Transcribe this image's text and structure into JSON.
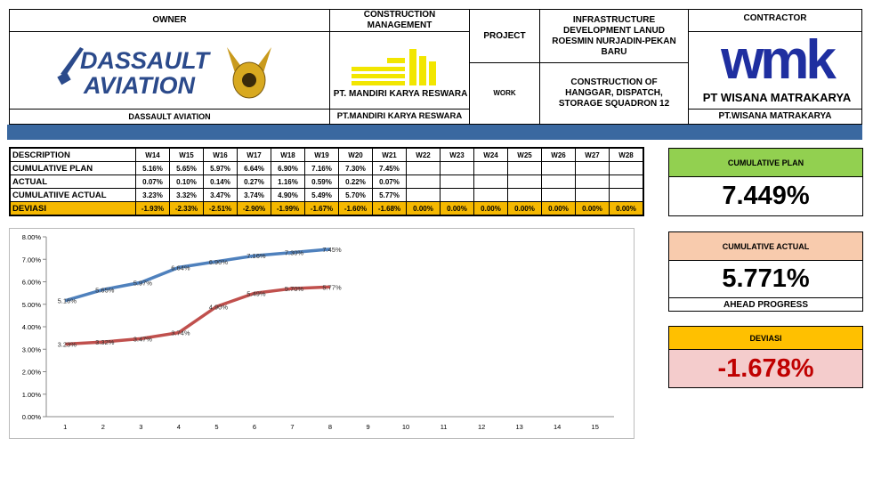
{
  "header": {
    "owner_label": "OWNER",
    "cm_label": "CONSTRUCTION MANAGEMENT",
    "project_label": "PROJECT",
    "work_label": "WORK",
    "project": "INFRASTRUCTURE DEVELOPMENT LANUD ROESMIN NURJADIN-PEKAN BARU",
    "work": "CONSTRUCTION OF HANGGAR, DISPATCH, STORAGE SQUADRON 12",
    "contractor_label": "CONTRACTOR",
    "owner": "DASSAULT AVIATION",
    "cm": "PT.MANDIRI KARYA RESWARA",
    "contractor": "PT.WISANA MATRAKARYA",
    "logos": {
      "owner_line1": "DASSAULT",
      "owner_line2": "AVIATION",
      "cm": "PT. MANDIRI KARYA RESWARA",
      "contractor_mark": "wmk",
      "contractor": "PT WISANA MATRAKARYA"
    }
  },
  "table": {
    "columns": [
      "DESCRIPTION",
      "W14",
      "W15",
      "W16",
      "W17",
      "W18",
      "W19",
      "W20",
      "W21",
      "W22",
      "W23",
      "W24",
      "W25",
      "W26",
      "W27",
      "W28"
    ],
    "rows": [
      [
        "CUMULATIVE PLAN",
        "5.16%",
        "5.65%",
        "5.97%",
        "6.64%",
        "6.90%",
        "7.16%",
        "7.30%",
        "7.45%"
      ],
      [
        "ACTUAL",
        "0.07%",
        "0.10%",
        "0.14%",
        "0.27%",
        "1.16%",
        "0.59%",
        "0.22%",
        "0.07%"
      ],
      [
        "CUMULATIIVE ACTUAL",
        "3.23%",
        "3.32%",
        "3.47%",
        "3.74%",
        "4.90%",
        "5.49%",
        "5.70%",
        "5.77%"
      ],
      [
        "DEVIASI",
        "-1.93%",
        "-2.33%",
        "-2.51%",
        "-2.90%",
        "-1.99%",
        "-1.67%",
        "-1.60%",
        "-1.68%",
        "0.00%",
        "0.00%",
        "0.00%",
        "0.00%",
        "0.00%",
        "0.00%",
        "0.00%"
      ]
    ]
  },
  "chart_data": {
    "type": "line",
    "categories": [
      "1",
      "2",
      "3",
      "4",
      "5",
      "6",
      "7",
      "8",
      "9",
      "10",
      "11",
      "12",
      "13",
      "14",
      "15"
    ],
    "ylim": [
      0,
      8
    ],
    "yticks": [
      {
        "value": 0,
        "label": "0.00%"
      },
      {
        "value": 1,
        "label": "1.00%"
      },
      {
        "value": 2,
        "label": "2.00%"
      },
      {
        "value": 3,
        "label": "3.00%"
      },
      {
        "value": 4,
        "label": "4.00%"
      },
      {
        "value": 5,
        "label": "5.00%"
      },
      {
        "value": 6,
        "label": "6.00%"
      },
      {
        "value": 7,
        "label": "7.00%"
      },
      {
        "value": 8,
        "label": "8.00%"
      }
    ],
    "series": [
      {
        "color": "#4f81bd",
        "values": [
          5.16,
          5.65,
          5.97,
          6.64,
          6.9,
          7.16,
          7.3,
          7.45,
          null,
          null,
          null,
          null,
          null,
          null,
          null
        ],
        "value_labels": [
          "5.16%",
          "5.65%",
          "5.97%",
          "6.64%",
          "6.90%",
          "7.16%",
          "7.30%",
          "7.45%",
          null,
          null,
          null,
          null,
          null,
          null,
          null
        ]
      },
      {
        "color": "#c0504d",
        "values": [
          3.23,
          3.32,
          3.47,
          3.74,
          4.9,
          5.49,
          5.7,
          5.77,
          null,
          null,
          null,
          null,
          null,
          null,
          null
        ],
        "value_labels": [
          "3.23%",
          "3.32%",
          "3.47%",
          "3.74%",
          "4.90%",
          "5.49%",
          "5.70%",
          "5.77%",
          null,
          null,
          null,
          null,
          null,
          null,
          null
        ]
      }
    ]
  },
  "kpis": [
    {
      "label": "CUMULATIVE PLAN",
      "value": "7.449%"
    },
    {
      "label": "CUMULATIVE ACTUAL",
      "value": "5.771%",
      "note": "AHEAD PROGRESS"
    },
    {
      "label": "DEVIASI",
      "value": "-1.678%"
    }
  ]
}
